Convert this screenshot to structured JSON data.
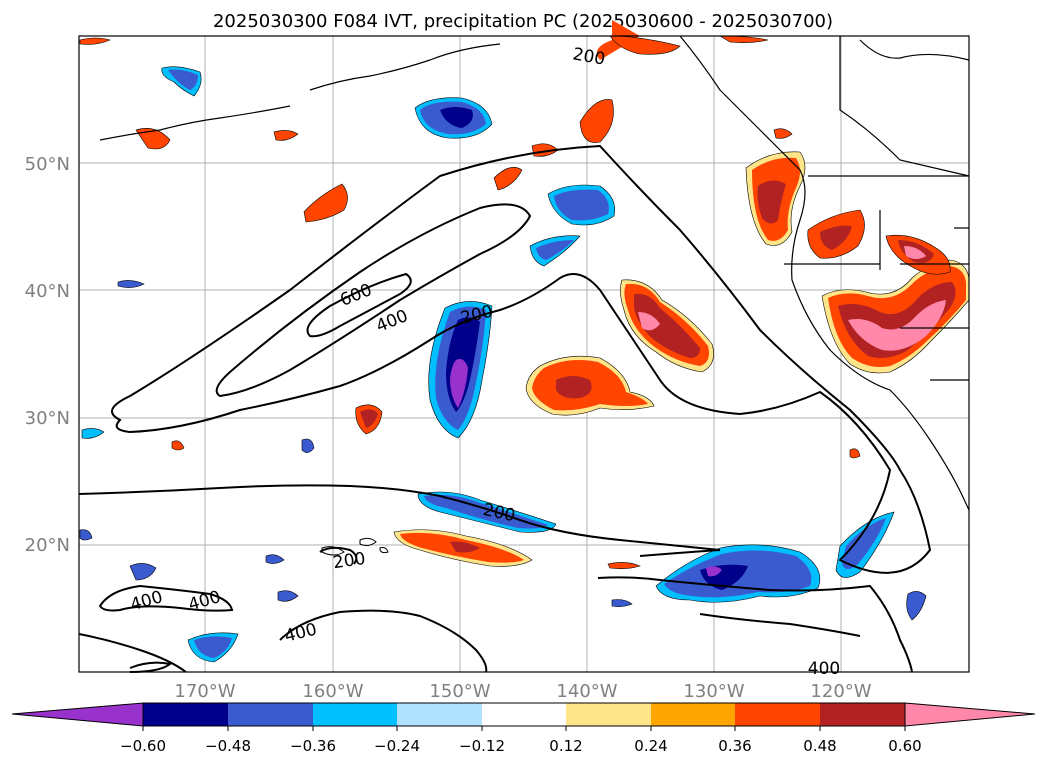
{
  "title": "2025030300 F084 IVT, precipitation PC (2025030600 - 2025030700)",
  "lat_labels": [
    "50°N",
    "40°N",
    "30°N",
    "20°N"
  ],
  "lon_labels": [
    "170°W",
    "160°W",
    "150°W",
    "140°W",
    "130°W",
    "120°W"
  ],
  "contour_labels": [
    "200",
    "600",
    "400",
    "200",
    "200",
    "200",
    "400",
    "400",
    "400",
    "400"
  ],
  "colorbar": {
    "colors": [
      "#9932cc",
      "#00008b",
      "#3a5bd0",
      "#00bfff",
      "#b0e2ff",
      "#ffffff",
      "#ffe58a",
      "#ffa500",
      "#ff4500",
      "#b22222",
      "#ff88aa"
    ],
    "ticks": [
      "−0.60",
      "−0.48",
      "−0.36",
      "−0.24",
      "−0.12",
      "0.12",
      "0.24",
      "0.36",
      "0.48",
      "0.60"
    ]
  },
  "legend_colors": {
    "negative_strong": "#00008b",
    "negative_mid": "#3a5bd0",
    "negative_weak": "#00bfff",
    "positive_weak": "#ffa500",
    "positive_mid": "#ff4500",
    "positive_strong": "#b22222",
    "positive_max": "#ff88aa"
  }
}
